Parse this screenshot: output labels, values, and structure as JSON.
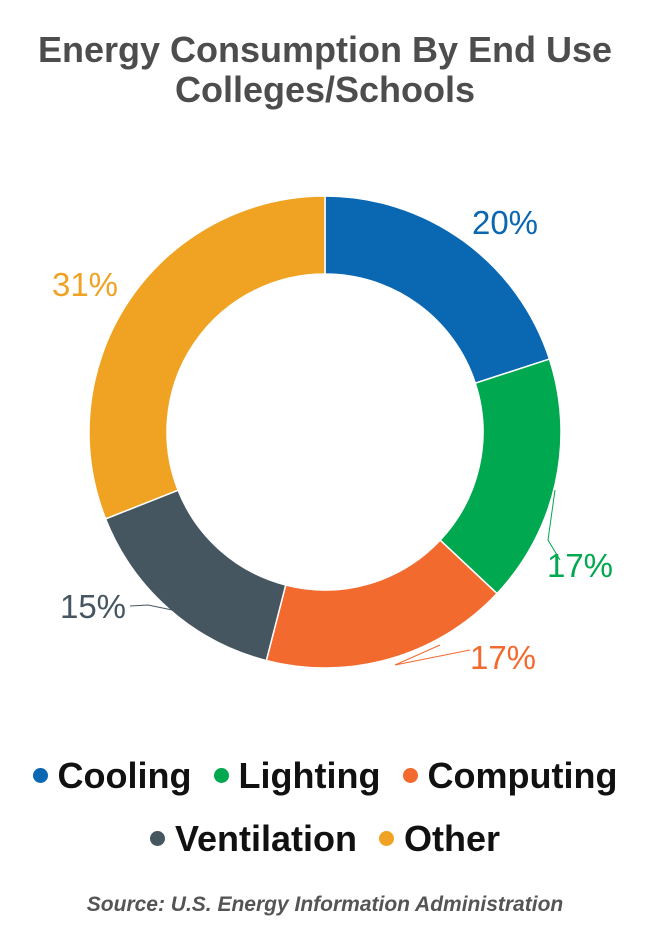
{
  "chart_data": {
    "type": "pie",
    "title": "Energy Consumption By End Use",
    "subtitle": "Colleges/Schools",
    "categories": [
      "Cooling",
      "Lighting",
      "Computing",
      "Ventilation",
      "Other"
    ],
    "values": [
      20,
      17,
      17,
      15,
      31
    ],
    "data_labels": [
      "20%",
      "17%",
      "17%",
      "15%",
      "31%"
    ],
    "colors": [
      "#0a67b2",
      "#00a84f",
      "#f26a2e",
      "#465661",
      "#f0a323"
    ],
    "donut": true,
    "legend_position": "bottom",
    "source": "Source: U.S. Energy Information Administration"
  }
}
